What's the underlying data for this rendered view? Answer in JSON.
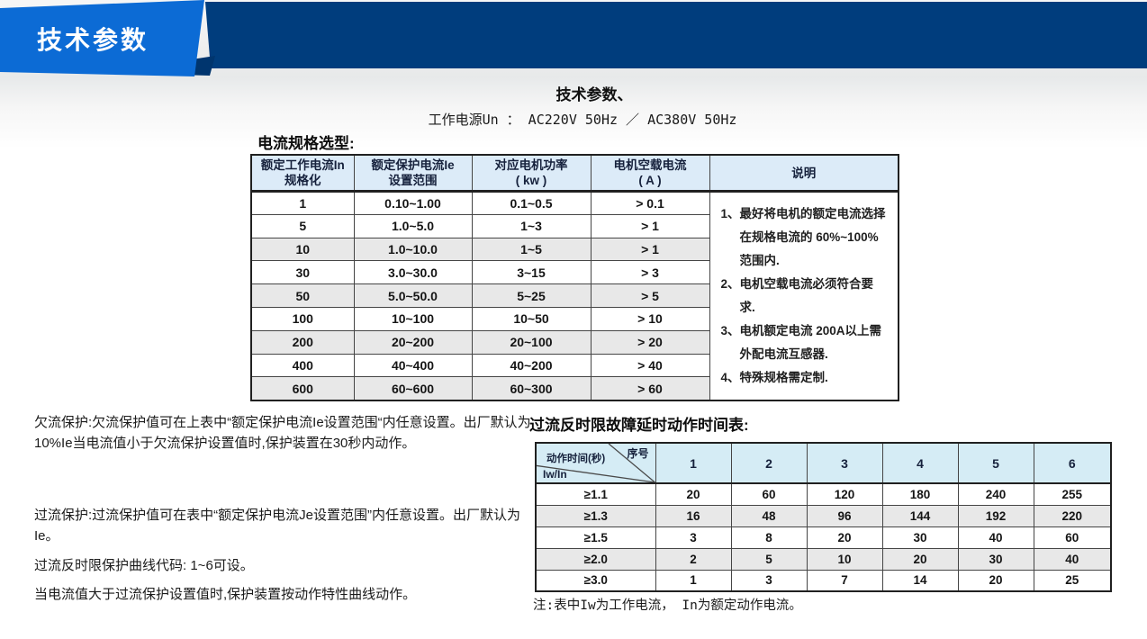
{
  "colors": {
    "accent_blue": "#0c6bd5",
    "navy": "#003d7d",
    "table1_header_bg": "#dcebf8",
    "table2_header_bg": "#d5ecf5",
    "shaded_row_bg": "#e8e8e8"
  },
  "banner": {
    "title": "技术参数"
  },
  "page": {
    "title": "技术参数、",
    "subtitle": "工作电源Un ： AC220V 50Hz ／ AC380V 50Hz"
  },
  "table1": {
    "caption": "电流规格选型:",
    "headers": [
      {
        "line1": "额定工作电流In",
        "line2": "规格化"
      },
      {
        "line1": "额定保护电流Ie",
        "line2": "设置范围"
      },
      {
        "line1": "对应电机功率",
        "line2": "( kw )"
      },
      {
        "line1": "电机空载电流",
        "line2": "( A )"
      },
      {
        "line1": "说明",
        "line2": ""
      }
    ],
    "rows": [
      [
        "1",
        "0.10~1.00",
        "0.1~0.5",
        "> 0.1"
      ],
      [
        "5",
        "1.0~5.0",
        "1~3",
        "> 1"
      ],
      [
        "10",
        "1.0~10.0",
        "1~5",
        "> 1"
      ],
      [
        "30",
        "3.0~30.0",
        "3~15",
        "> 3"
      ],
      [
        "50",
        "5.0~50.0",
        "5~25",
        "> 5"
      ],
      [
        "100",
        "10~100",
        "10~50",
        "> 10"
      ],
      [
        "200",
        "20~200",
        "20~100",
        "> 20"
      ],
      [
        "400",
        "40~400",
        "40~200",
        "> 40"
      ],
      [
        "600",
        "60~600",
        "60~300",
        "> 60"
      ]
    ],
    "shaded_rows": [
      2,
      4,
      6,
      8
    ],
    "notes": [
      "1、最好将电机的额定电流选择在规格电流的 60%~100%范围内.",
      "2、电机空载电流必须符合要求.",
      "3、电机额定电流 200A以上需外配电流互感器.",
      "4、特殊规格需定制."
    ]
  },
  "paragraphs": {
    "p1": "欠流保护:欠流保护值可在上表中“额定保护电流Ie设置范围“内任意设置。出厂默认为10%Ie当电流值小于欠流保护设置值时,保护装置在30秒内动作。",
    "p2": "过流保护:过流保护值可在表中“额定保护电流Je设置范围”内任意设置。出厂默认为Ie。",
    "p3": "过流反时限保护曲线代码: 1~6可设。",
    "p4": "当电流值大于过流保护设置值时,保护装置按动作特性曲线动作。"
  },
  "table2": {
    "caption": "过流反时限故障延时动作时间表:",
    "corner": {
      "middle": "动作时间(秒)",
      "top_right": "序号",
      "bottom_left": "Iw/In"
    },
    "col_headers": [
      "1",
      "2",
      "3",
      "4",
      "5",
      "6"
    ],
    "rows": [
      {
        "label": "≥1.1",
        "values": [
          "20",
          "60",
          "120",
          "180",
          "240",
          "255"
        ]
      },
      {
        "label": "≥1.3",
        "values": [
          "16",
          "48",
          "96",
          "144",
          "192",
          "220"
        ]
      },
      {
        "label": "≥1.5",
        "values": [
          "3",
          "8",
          "20",
          "30",
          "40",
          "60"
        ]
      },
      {
        "label": "≥2.0",
        "values": [
          "2",
          "5",
          "10",
          "20",
          "30",
          "40"
        ]
      },
      {
        "label": "≥3.0",
        "values": [
          "1",
          "3",
          "7",
          "14",
          "20",
          "25"
        ]
      }
    ],
    "shaded_rows": [
      1,
      3
    ],
    "footnote": "注:表中Iw为工作电流， In为额定动作电流。"
  }
}
